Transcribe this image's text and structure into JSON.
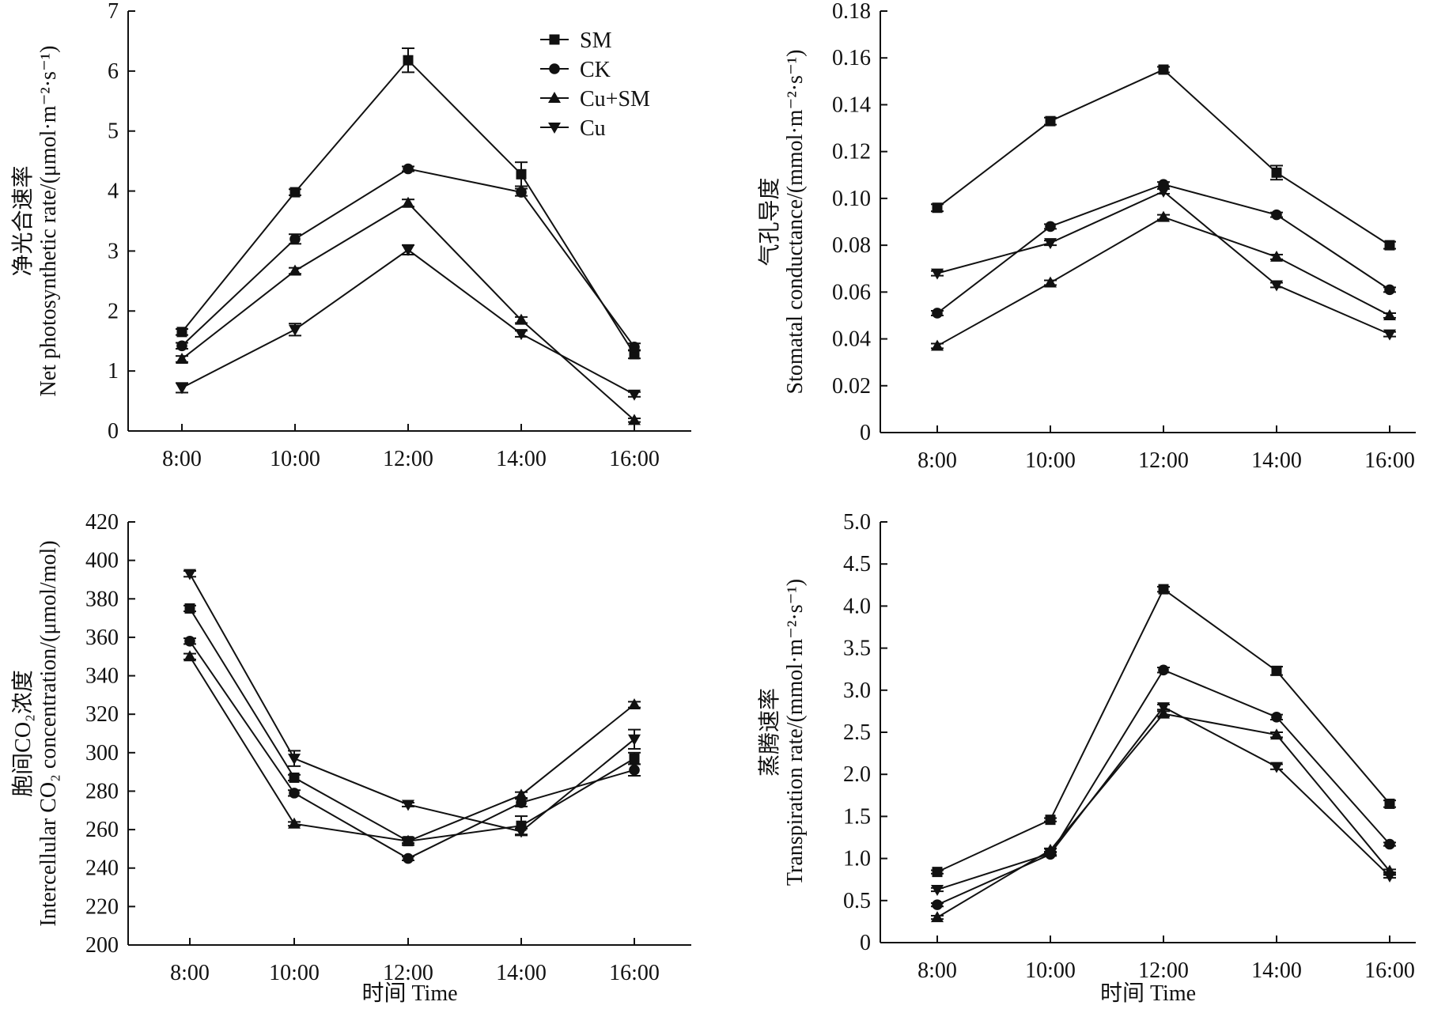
{
  "chart_data": [
    {
      "type": "line",
      "ylabel_cn": "净光合速率",
      "ylabel": "Net photosynthetic rate/(μmol·m⁻²·s⁻¹)",
      "xlabel": "",
      "x": [
        "8:00",
        "10:00",
        "12:00",
        "14:00",
        "16:00"
      ],
      "ylim": [
        0,
        7
      ],
      "yticks": [
        "0",
        "1",
        "2",
        "3",
        "4",
        "5",
        "6",
        "7"
      ],
      "legend_location": "top-center",
      "series": [
        {
          "name": "SM",
          "marker": "square",
          "values": [
            1.65,
            3.98,
            6.18,
            4.28,
            1.28
          ],
          "errors": [
            0.05,
            0.05,
            0.2,
            0.2,
            0.07
          ]
        },
        {
          "name": "CK",
          "marker": "circle",
          "values": [
            1.42,
            3.2,
            4.37,
            3.98,
            1.4
          ],
          "errors": [
            0.05,
            0.08,
            0.04,
            0.06,
            0.06
          ]
        },
        {
          "name": "Cu+SM",
          "marker": "triangle-up",
          "values": [
            1.2,
            2.67,
            3.8,
            1.85,
            0.18
          ],
          "errors": [
            0.05,
            0.05,
            0.06,
            0.05,
            0.03
          ]
        },
        {
          "name": "Cu",
          "marker": "triangle-down",
          "values": [
            0.72,
            1.69,
            3.02,
            1.62,
            0.61
          ],
          "errors": [
            0.08,
            0.1,
            0.08,
            0.05,
            0.04
          ]
        }
      ]
    },
    {
      "type": "line",
      "ylabel_cn": "气孔导度",
      "ylabel": "Stomatal conductance/(mmol·m⁻²·s⁻¹)",
      "xlabel": "",
      "x": [
        "8:00",
        "10:00",
        "12:00",
        "14:00",
        "16:00"
      ],
      "ylim": [
        0,
        0.18
      ],
      "yticks": [
        "0",
        "0.02",
        "0.04",
        "0.06",
        "0.08",
        "0.10",
        "0.12",
        "0.14",
        "0.16",
        "0.18"
      ],
      "series": [
        {
          "name": "SM",
          "marker": "square",
          "values": [
            0.096,
            0.133,
            0.155,
            0.111,
            0.08
          ],
          "errors": [
            0.0015,
            0.0015,
            0.0012,
            0.003,
            0.0015
          ]
        },
        {
          "name": "CK",
          "marker": "circle",
          "values": [
            0.051,
            0.088,
            0.106,
            0.093,
            0.061
          ],
          "errors": [
            0.001,
            0.001,
            0.001,
            0.001,
            0.001
          ]
        },
        {
          "name": "Cu+SM",
          "marker": "triangle-up",
          "values": [
            0.037,
            0.064,
            0.092,
            0.075,
            0.05
          ],
          "errors": [
            0.001,
            0.001,
            0.001,
            0.001,
            0.001
          ]
        },
        {
          "name": "Cu",
          "marker": "triangle-down",
          "values": [
            0.068,
            0.081,
            0.103,
            0.063,
            0.042
          ],
          "errors": [
            0.001,
            0.001,
            0.001,
            0.001,
            0.001
          ]
        }
      ]
    },
    {
      "type": "line",
      "ylabel_cn": "胞间CO₂浓度",
      "ylabel": "Intercellular CO₂ concentration/(μmol/mol)",
      "xlabel": "时间 Time",
      "x": [
        "8:00",
        "10:00",
        "12:00",
        "14:00",
        "16:00"
      ],
      "ylim": [
        200,
        420
      ],
      "yticks": [
        "200",
        "220",
        "240",
        "260",
        "280",
        "300",
        "320",
        "340",
        "360",
        "380",
        "400",
        "420"
      ],
      "series": [
        {
          "name": "SM",
          "marker": "square",
          "values": [
            375,
            287,
            254,
            262,
            297
          ],
          "errors": [
            1.5,
            1.5,
            2,
            5,
            3
          ]
        },
        {
          "name": "CK",
          "marker": "circle",
          "values": [
            358,
            279,
            245,
            274,
            291
          ],
          "errors": [
            1.5,
            1.5,
            1,
            2,
            3
          ]
        },
        {
          "name": "Cu+SM",
          "marker": "triangle-up",
          "values": [
            350,
            263,
            254,
            278,
            325
          ],
          "errors": [
            1.5,
            1,
            1,
            1.5,
            1.5
          ]
        },
        {
          "name": "Cu",
          "marker": "triangle-down",
          "values": [
            393,
            297,
            273,
            259,
            307
          ],
          "errors": [
            1.5,
            4,
            1,
            1.5,
            5
          ]
        }
      ]
    },
    {
      "type": "line",
      "ylabel_cn": "蒸腾速率",
      "ylabel": "Transpiration rate/(mmol·m⁻²·s⁻¹)",
      "xlabel": "时间 Time",
      "x": [
        "8:00",
        "10:00",
        "12:00",
        "14:00",
        "16:00"
      ],
      "ylim": [
        0,
        5.0
      ],
      "yticks": [
        "0",
        "0.5",
        "1.0",
        "1.5",
        "2.0",
        "2.5",
        "3.0",
        "3.5",
        "4.0",
        "4.5",
        "5.0"
      ],
      "series": [
        {
          "name": "SM",
          "marker": "square",
          "values": [
            0.84,
            1.46,
            4.2,
            3.23,
            1.65
          ],
          "errors": [
            0.02,
            0.02,
            0.03,
            0.05,
            0.04
          ]
        },
        {
          "name": "CK",
          "marker": "circle",
          "values": [
            0.45,
            1.05,
            3.24,
            2.68,
            1.17
          ],
          "errors": [
            0.02,
            0.02,
            0.03,
            0.03,
            0.02
          ]
        },
        {
          "name": "Cu+SM",
          "marker": "triangle-up",
          "values": [
            0.3,
            1.1,
            2.72,
            2.47,
            0.85
          ],
          "errors": [
            0.02,
            0.02,
            0.03,
            0.03,
            0.02
          ]
        },
        {
          "name": "Cu",
          "marker": "triangle-down",
          "values": [
            0.63,
            1.06,
            2.8,
            2.09,
            0.79
          ],
          "errors": [
            0.02,
            0.02,
            0.03,
            0.03,
            0.02
          ]
        }
      ]
    }
  ]
}
